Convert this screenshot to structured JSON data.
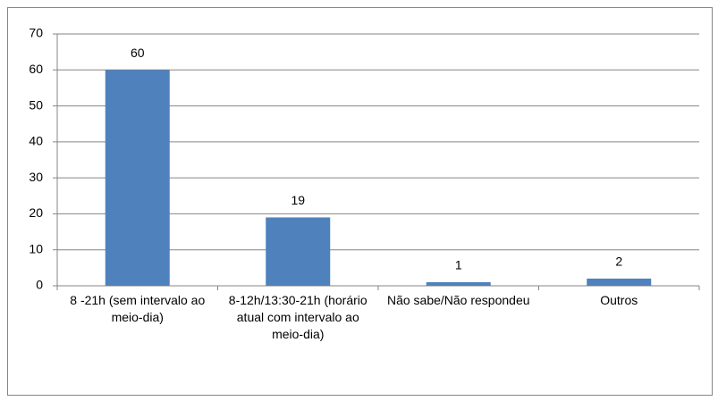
{
  "chart_data": {
    "type": "bar",
    "categories": [
      "8 -21h (sem intervalo ao meio-dia)",
      "8-12h/13:30-21h (horário atual com intervalo ao meio-dia)",
      "Não sabe/Não respondeu",
      "Outros"
    ],
    "values": [
      60,
      19,
      1,
      2
    ],
    "color": "#4f81bd",
    "ylim": [
      0,
      70
    ],
    "yticks": [
      0,
      10,
      20,
      30,
      40,
      50,
      60,
      70
    ],
    "grid": true,
    "data_labels": true
  }
}
